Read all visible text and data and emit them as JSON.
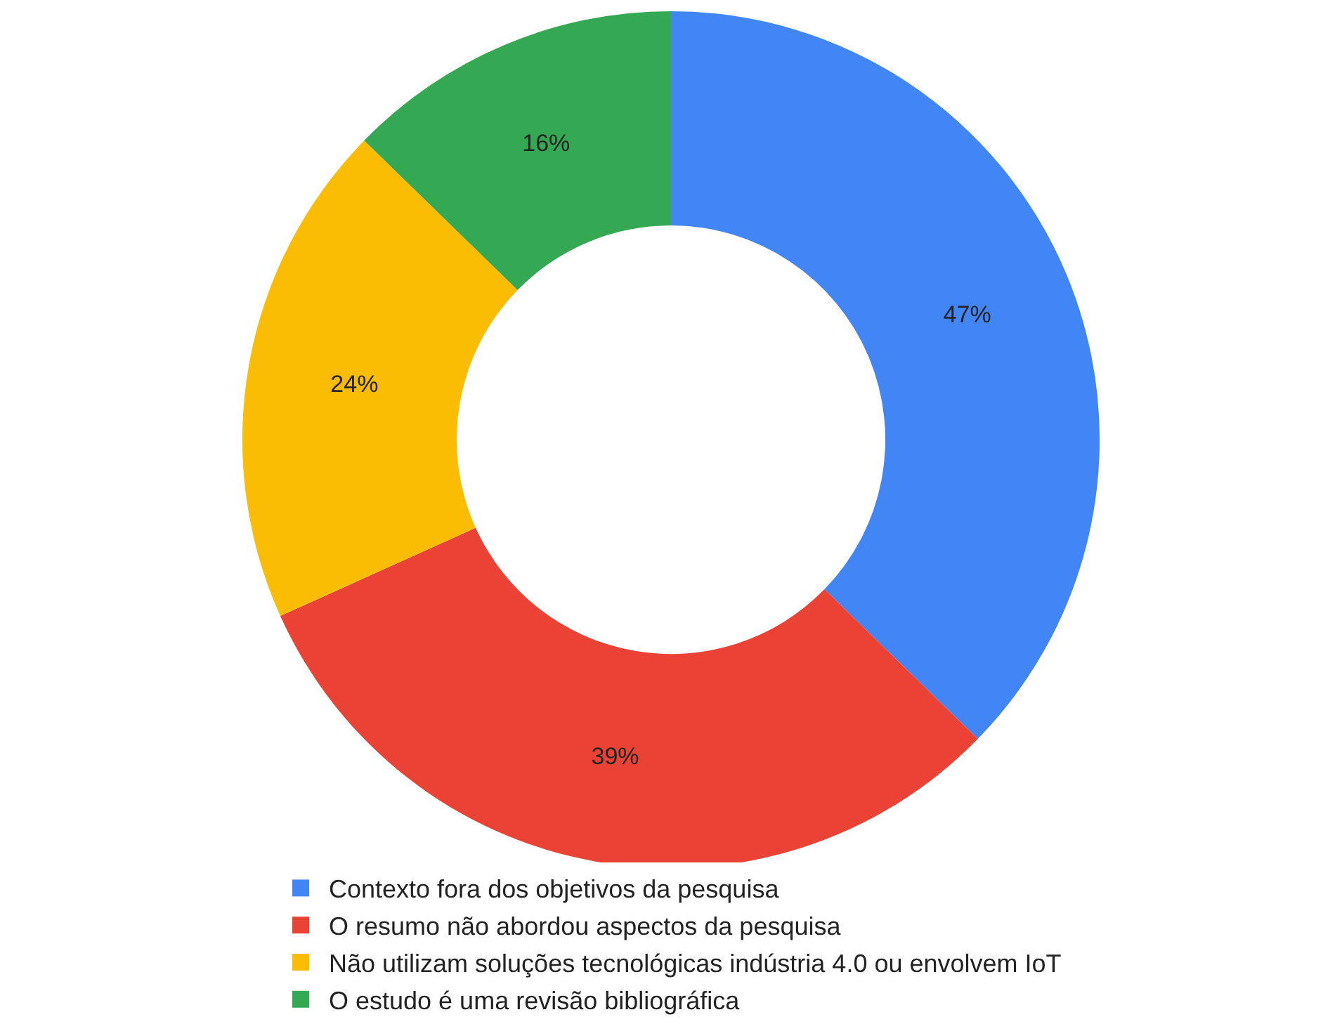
{
  "chart_data": {
    "type": "donut",
    "categories": [
      "Contexto fora dos objetivos da pesquisa",
      "O resumo não abordou aspectos da pesquisa",
      "Não utilizam soluções tecnológicas indústria 4.0 ou envolvem IoT",
      "O estudo é uma revisão bibliográfica"
    ],
    "values": [
      47,
      39,
      24,
      16
    ],
    "value_labels": [
      "47%",
      "39%",
      "24%",
      "16%"
    ],
    "colors": [
      "#4285f4",
      "#ea4335",
      "#fbbc04",
      "#34a853"
    ],
    "legend": "bottom"
  }
}
